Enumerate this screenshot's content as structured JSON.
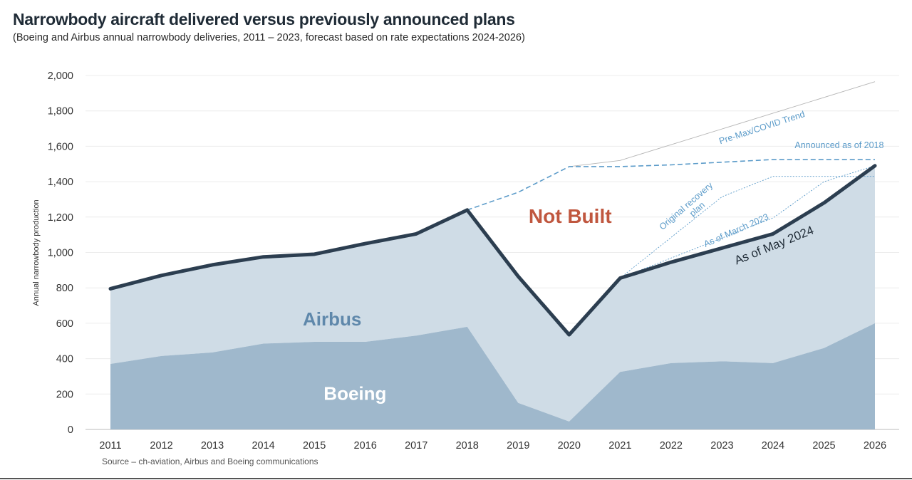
{
  "title": "Narrowbody aircraft delivered versus previously announced plans",
  "subtitle": "(Boeing and Airbus annual narrowbody deliveries, 2011 – 2023, forecast based on rate expectations 2024-2026)",
  "source": "Source – ch-aviation, Airbus and Boeing communications",
  "colors": {
    "boeing": "#9fb8cc",
    "airbus": "#cfdce6",
    "total_line": "#2c3e50",
    "plan_lines": "#5b9bc9",
    "trend_line": "#b5b5b5",
    "not_built": "#c0573f"
  },
  "chart_data": {
    "type": "area",
    "x": [
      2011,
      2012,
      2013,
      2014,
      2015,
      2016,
      2017,
      2018,
      2019,
      2020,
      2021,
      2022,
      2023,
      2024,
      2025,
      2026
    ],
    "ylabel": "Annual narrowbody production",
    "ylim": [
      0,
      2000
    ],
    "yticks": [
      0,
      200,
      400,
      600,
      800,
      1000,
      1200,
      1400,
      1600,
      1800,
      2000
    ],
    "ytick_labels": [
      "0",
      "200",
      "400",
      "600",
      "800",
      "1,000",
      "1,200",
      "1,400",
      "1,600",
      "1,800",
      "2,000"
    ],
    "series": [
      {
        "name": "Boeing",
        "values": [
          370,
          415,
          435,
          485,
          495,
          495,
          530,
          580,
          150,
          45,
          325,
          375,
          385,
          375,
          460,
          600
        ]
      },
      {
        "name": "Airbus",
        "values": [
          425,
          455,
          495,
          490,
          495,
          555,
          575,
          660,
          715,
          490,
          530,
          570,
          640,
          730,
          820,
          890
        ]
      }
    ],
    "total_line": {
      "name": "As of May 2024",
      "x": [
        2011,
        2012,
        2013,
        2014,
        2015,
        2016,
        2017,
        2018,
        2019,
        2020,
        2021,
        2022,
        2023,
        2024,
        2025,
        2026
      ],
      "values": [
        795,
        870,
        930,
        975,
        990,
        1050,
        1105,
        1240,
        865,
        535,
        855,
        945,
        1025,
        1105,
        1280,
        1490
      ]
    },
    "plans": [
      {
        "name": "Pre-Max/COVID Trend",
        "x": [
          2020,
          2021,
          2026
        ],
        "values": [
          1485,
          1520,
          1965
        ],
        "style": "solid",
        "color_key": "trend_line"
      },
      {
        "name": "Announced as of 2018",
        "x": [
          2018,
          2019,
          2020,
          2021,
          2022,
          2023,
          2024,
          2025,
          2026
        ],
        "values": [
          1240,
          1340,
          1485,
          1485,
          1495,
          1510,
          1525,
          1525,
          1525
        ],
        "style": "dashed",
        "color_key": "plan_lines"
      },
      {
        "name": "Original recovery plan",
        "x": [
          2021,
          2023,
          2024,
          2026
        ],
        "values": [
          855,
          1315,
          1430,
          1430
        ],
        "style": "dotted",
        "color_key": "plan_lines"
      },
      {
        "name": "As of March 2023",
        "x": [
          2021,
          2024,
          2025,
          2026
        ],
        "values": [
          855,
          1195,
          1400,
          1490
        ],
        "style": "dotted",
        "color_key": "plan_lines"
      }
    ],
    "area_labels": {
      "boeing": "Boeing",
      "airbus": "Airbus",
      "not_built": "Not Built"
    }
  }
}
